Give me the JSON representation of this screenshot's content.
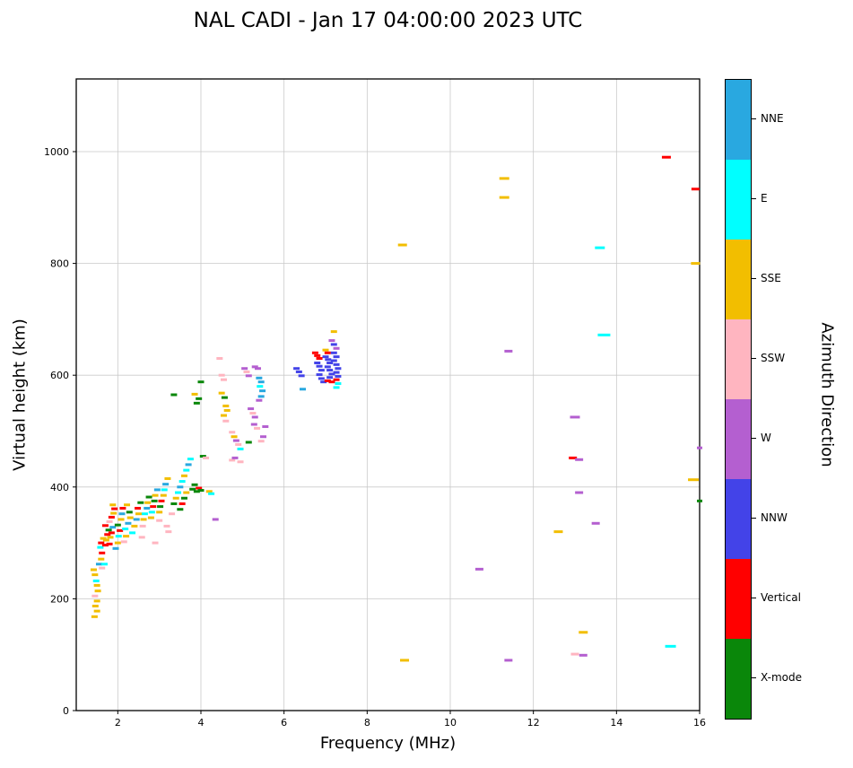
{
  "title": "NAL CADI - Jan 17 04:00:00 2023 UTC",
  "x_axis": {
    "label": "Frequency (MHz)",
    "min": 1,
    "max": 16,
    "ticks": [
      2,
      4,
      6,
      8,
      10,
      12,
      14,
      16
    ]
  },
  "y_axis": {
    "label": "Virtual height (km)",
    "min": 0,
    "max": 1130,
    "ticks": [
      0,
      200,
      400,
      600,
      800,
      1000
    ]
  },
  "legend": {
    "title": "Azimuth Direction",
    "categories": [
      {
        "key": "NNE",
        "label": "NNE",
        "color": "#29A8E0"
      },
      {
        "key": "E",
        "label": "E",
        "color": "#00FFFF"
      },
      {
        "key": "SSE",
        "label": "SSE",
        "color": "#F2BE00"
      },
      {
        "key": "SSW",
        "label": "SSW",
        "color": "#FFB5C0"
      },
      {
        "key": "W",
        "label": "W",
        "color": "#B45FD0"
      },
      {
        "key": "NNW",
        "label": "NNW",
        "color": "#4343E8"
      },
      {
        "key": "V",
        "label": "Vertical",
        "color": "#FF0000"
      },
      {
        "key": "X",
        "label": "X-mode",
        "color": "#0A870A"
      }
    ]
  },
  "colors": {
    "grid": "#c9c9c9",
    "axis": "#000000",
    "background": "#ffffff"
  },
  "chart_data": {
    "type": "scatter",
    "marker": "horizontal-dash",
    "title": "NAL CADI - Jan 17 04:00:00 2023 UTC",
    "xlabel": "Frequency (MHz)",
    "ylabel": "Virtual height (km)",
    "xlim": [
      1,
      16
    ],
    "ylim": [
      0,
      1130
    ],
    "grid": true,
    "legend_position": "right-colorbar",
    "points_format": [
      "frequency_mhz",
      "virtual_height_km",
      "azimuth_key",
      "optional_px_width"
    ],
    "points": [
      [
        1.44,
        168,
        "SSE"
      ],
      [
        1.5,
        178,
        "SSE"
      ],
      [
        1.46,
        187,
        "SSE"
      ],
      [
        1.5,
        196,
        "SSE"
      ],
      [
        1.45,
        205,
        "SSW"
      ],
      [
        1.52,
        214,
        "SSE"
      ],
      [
        1.5,
        224,
        "SSE"
      ],
      [
        1.48,
        232,
        "E"
      ],
      [
        1.45,
        243,
        "SSE"
      ],
      [
        1.42,
        252,
        "SSE"
      ],
      [
        1.55,
        262,
        "NNE"
      ],
      [
        1.6,
        271,
        "SSE"
      ],
      [
        1.62,
        282,
        "V"
      ],
      [
        1.58,
        292,
        "E"
      ],
      [
        1.6,
        300,
        "V"
      ],
      [
        1.65,
        308,
        "SSE"
      ],
      [
        1.7,
        296,
        "V"
      ],
      [
        1.72,
        305,
        "SSE"
      ],
      [
        1.75,
        315,
        "V"
      ],
      [
        1.78,
        323,
        "X"
      ],
      [
        1.7,
        331,
        "V"
      ],
      [
        1.8,
        298,
        "V"
      ],
      [
        1.82,
        310,
        "SSE"
      ],
      [
        1.85,
        318,
        "V"
      ],
      [
        1.88,
        328,
        "NNE"
      ],
      [
        1.8,
        338,
        "SSW"
      ],
      [
        1.85,
        346,
        "V"
      ],
      [
        1.9,
        353,
        "SSE"
      ],
      [
        1.92,
        361,
        "V"
      ],
      [
        1.88,
        368,
        "SSE"
      ],
      [
        1.95,
        290,
        "NNE"
      ],
      [
        2.0,
        300,
        "SSE"
      ],
      [
        2.02,
        312,
        "E"
      ],
      [
        2.05,
        322,
        "V"
      ],
      [
        2.0,
        332,
        "X"
      ],
      [
        2.08,
        342,
        "SSE"
      ],
      [
        2.1,
        352,
        "NNE"
      ],
      [
        2.12,
        362,
        "V"
      ],
      [
        2.15,
        302,
        "SSW"
      ],
      [
        2.2,
        312,
        "SSE"
      ],
      [
        2.18,
        325,
        "E"
      ],
      [
        2.25,
        335,
        "NNE"
      ],
      [
        2.3,
        345,
        "SSE"
      ],
      [
        2.28,
        355,
        "X"
      ],
      [
        2.22,
        368,
        "SSE"
      ],
      [
        1.62,
        255,
        "SSW"
      ],
      [
        1.68,
        262,
        "E"
      ],
      [
        2.35,
        318,
        "E"
      ],
      [
        2.4,
        330,
        "SSE"
      ],
      [
        2.45,
        342,
        "NNE"
      ],
      [
        2.5,
        352,
        "SSE"
      ],
      [
        2.48,
        362,
        "V"
      ],
      [
        2.55,
        372,
        "X"
      ],
      [
        2.6,
        330,
        "SSW"
      ],
      [
        2.62,
        342,
        "SSE"
      ],
      [
        2.65,
        352,
        "E"
      ],
      [
        2.7,
        362,
        "NNE"
      ],
      [
        2.72,
        372,
        "SSE"
      ],
      [
        2.75,
        382,
        "X"
      ],
      [
        2.8,
        345,
        "SSE"
      ],
      [
        2.82,
        355,
        "E"
      ],
      [
        2.85,
        365,
        "V"
      ],
      [
        2.88,
        375,
        "X"
      ],
      [
        2.9,
        385,
        "SSE"
      ],
      [
        2.95,
        395,
        "NNE"
      ],
      [
        3.0,
        355,
        "SSE"
      ],
      [
        3.02,
        365,
        "X"
      ],
      [
        3.05,
        375,
        "V"
      ],
      [
        3.1,
        385,
        "SSE"
      ],
      [
        3.12,
        395,
        "E"
      ],
      [
        3.15,
        405,
        "NNE"
      ],
      [
        3.2,
        415,
        "SSE"
      ],
      [
        3.0,
        340,
        "SSW"
      ],
      [
        3.18,
        330,
        "SSW"
      ],
      [
        2.9,
        300,
        "SSW"
      ],
      [
        3.22,
        320,
        "SSW"
      ],
      [
        2.58,
        310,
        "SSW"
      ],
      [
        3.35,
        370,
        "X"
      ],
      [
        3.4,
        380,
        "SSE"
      ],
      [
        3.45,
        390,
        "E"
      ],
      [
        3.5,
        400,
        "NNE"
      ],
      [
        3.55,
        410,
        "E"
      ],
      [
        3.6,
        420,
        "SSE"
      ],
      [
        3.65,
        430,
        "E"
      ],
      [
        3.7,
        440,
        "NNE"
      ],
      [
        3.75,
        450,
        "E"
      ],
      [
        3.5,
        360,
        "X"
      ],
      [
        3.55,
        370,
        "V"
      ],
      [
        3.6,
        380,
        "X"
      ],
      [
        3.65,
        390,
        "SSE"
      ],
      [
        3.8,
        396,
        "X"
      ],
      [
        3.85,
        404,
        "X"
      ],
      [
        3.9,
        392,
        "X"
      ],
      [
        3.95,
        398,
        "V"
      ],
      [
        4.0,
        394,
        "X"
      ],
      [
        3.9,
        550,
        "X"
      ],
      [
        3.95,
        558,
        "X"
      ],
      [
        3.85,
        566,
        "SSE"
      ],
      [
        4.0,
        588,
        "X"
      ],
      [
        3.35,
        565,
        "X"
      ],
      [
        4.05,
        455,
        "X"
      ],
      [
        4.12,
        452,
        "SSW"
      ],
      [
        4.2,
        392,
        "SSE"
      ],
      [
        4.25,
        388,
        "E"
      ],
      [
        3.3,
        352,
        "SSW"
      ],
      [
        4.35,
        342,
        "W"
      ],
      [
        4.45,
        630,
        "SSW"
      ],
      [
        4.5,
        600,
        "SSW"
      ],
      [
        4.55,
        592,
        "SSW"
      ],
      [
        4.5,
        568,
        "SSE"
      ],
      [
        4.57,
        560,
        "X"
      ],
      [
        4.6,
        545,
        "SSE"
      ],
      [
        4.63,
        537,
        "SSE"
      ],
      [
        4.55,
        528,
        "SSE"
      ],
      [
        4.6,
        518,
        "SSW"
      ],
      [
        4.75,
        498,
        "SSW"
      ],
      [
        4.8,
        490,
        "SSE"
      ],
      [
        4.85,
        483,
        "W"
      ],
      [
        4.9,
        476,
        "SSW"
      ],
      [
        4.95,
        468,
        "E"
      ],
      [
        4.75,
        448,
        "SSW"
      ],
      [
        4.82,
        452,
        "W"
      ],
      [
        4.95,
        445,
        "SSW"
      ],
      [
        5.05,
        612,
        "W"
      ],
      [
        5.1,
        606,
        "SSW"
      ],
      [
        5.15,
        599,
        "W"
      ],
      [
        5.3,
        615,
        "W"
      ],
      [
        5.37,
        612,
        "W"
      ],
      [
        5.4,
        595,
        "NNE"
      ],
      [
        5.45,
        588,
        "NNE"
      ],
      [
        5.42,
        580,
        "E"
      ],
      [
        5.48,
        572,
        "NNE"
      ],
      [
        5.45,
        562,
        "NNE"
      ],
      [
        5.4,
        555,
        "W"
      ],
      [
        5.2,
        540,
        "W"
      ],
      [
        5.25,
        532,
        "SSW"
      ],
      [
        5.3,
        525,
        "W"
      ],
      [
        5.28,
        512,
        "W"
      ],
      [
        5.35,
        505,
        "SSW"
      ],
      [
        5.5,
        490,
        "W"
      ],
      [
        5.45,
        482,
        "SSW"
      ],
      [
        5.15,
        480,
        "X"
      ],
      [
        5.55,
        508,
        "W"
      ],
      [
        6.3,
        612,
        "NNW"
      ],
      [
        6.36,
        606,
        "NNW"
      ],
      [
        6.42,
        599,
        "NNW"
      ],
      [
        6.45,
        575,
        "NNE"
      ],
      [
        6.75,
        640,
        "V"
      ],
      [
        6.8,
        635,
        "V"
      ],
      [
        6.85,
        630,
        "V"
      ],
      [
        6.8,
        622,
        "NNW"
      ],
      [
        6.85,
        616,
        "NNW"
      ],
      [
        6.9,
        609,
        "NNW"
      ],
      [
        6.85,
        601,
        "NNW"
      ],
      [
        6.9,
        594,
        "NNW"
      ],
      [
        6.95,
        588,
        "NNW"
      ],
      [
        7.0,
        645,
        "SSE"
      ],
      [
        7.05,
        640,
        "V"
      ],
      [
        7.0,
        633,
        "NNW"
      ],
      [
        7.06,
        628,
        "NNW"
      ],
      [
        7.1,
        622,
        "NNW"
      ],
      [
        7.05,
        615,
        "NNW"
      ],
      [
        7.1,
        609,
        "NNW"
      ],
      [
        7.15,
        602,
        "NNW"
      ],
      [
        7.1,
        596,
        "NNW"
      ],
      [
        7.05,
        590,
        "V"
      ],
      [
        7.15,
        588,
        "V"
      ],
      [
        7.2,
        678,
        "SSE"
      ],
      [
        7.15,
        662,
        "W"
      ],
      [
        7.2,
        655,
        "NNW"
      ],
      [
        7.26,
        648,
        "W"
      ],
      [
        7.2,
        640,
        "NNW"
      ],
      [
        7.26,
        633,
        "NNW"
      ],
      [
        7.2,
        626,
        "NNW"
      ],
      [
        7.26,
        619,
        "NNW"
      ],
      [
        7.3,
        612,
        "NNW"
      ],
      [
        7.26,
        605,
        "NNW"
      ],
      [
        7.3,
        598,
        "NNW"
      ],
      [
        7.26,
        592,
        "V"
      ],
      [
        7.3,
        585,
        "E"
      ],
      [
        7.26,
        578,
        "E"
      ],
      [
        8.85,
        833,
        "SSE",
        10
      ],
      [
        8.9,
        90,
        "SSE",
        10
      ],
      [
        10.7,
        253,
        "W",
        9
      ],
      [
        11.3,
        952,
        "SSE",
        11
      ],
      [
        11.3,
        918,
        "SSE",
        11
      ],
      [
        11.4,
        643,
        "W",
        9
      ],
      [
        11.4,
        90,
        "W",
        9
      ],
      [
        12.6,
        320,
        "SSE",
        10
      ],
      [
        13.0,
        525,
        "W",
        11
      ],
      [
        12.95,
        452,
        "V",
        9
      ],
      [
        13.1,
        449,
        "W",
        9
      ],
      [
        13.1,
        390,
        "W",
        9
      ],
      [
        13.2,
        140,
        "SSE",
        10
      ],
      [
        13.0,
        101,
        "SSW",
        9
      ],
      [
        13.2,
        99,
        "W",
        9
      ],
      [
        13.5,
        335,
        "W",
        9
      ],
      [
        13.6,
        828,
        "E",
        11
      ],
      [
        13.7,
        672,
        "E",
        14
      ],
      [
        15.2,
        990,
        "V",
        10
      ],
      [
        15.3,
        115,
        "E",
        12
      ],
      [
        15.9,
        933,
        "V",
        9
      ],
      [
        15.9,
        800,
        "SSE",
        10
      ],
      [
        15.85,
        413,
        "SSE",
        12
      ],
      [
        16.0,
        470,
        "W",
        6
      ],
      [
        16.0,
        375,
        "X",
        6
      ]
    ]
  }
}
